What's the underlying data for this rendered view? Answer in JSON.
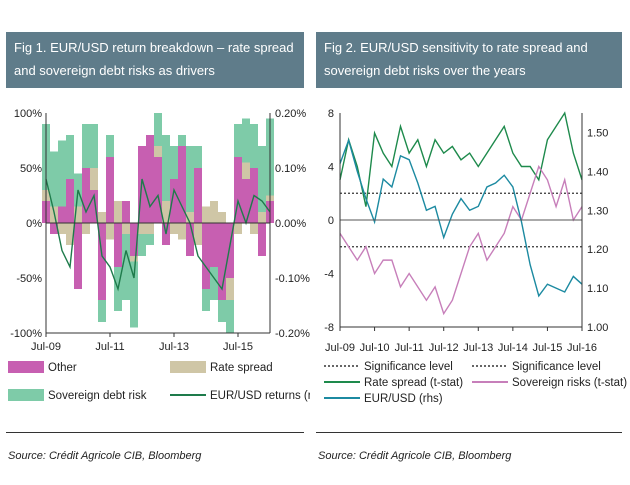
{
  "figures": [
    {
      "title": "Fig 1. EUR/USD return breakdown – rate spread and sovereign debt risks as drivers",
      "source": "Source: Crédit Agricole CIB, Bloomberg"
    },
    {
      "title": "Fig 2. EUR/USD sensitivity to rate spread and sovereign debt risks over the years",
      "source": "Source: Crédit Agricole CIB, Bloomberg"
    }
  ],
  "chart_data": [
    {
      "type": "area",
      "x_ticks": [
        "Jul-09",
        "Jul-11",
        "Jul-13",
        "Jul-15"
      ],
      "y_left_ticks": [
        "100%",
        "50%",
        "0%",
        "-50%",
        "-100%"
      ],
      "y_right_ticks": [
        "0.20%",
        "0.10%",
        "0.00%",
        "-0.10%",
        "-0.20%"
      ],
      "ylim_left": [
        -100,
        100
      ],
      "ylim_right": [
        -0.2,
        0.2
      ],
      "x_dates": [
        "2009-07",
        "2009-10",
        "2010-01",
        "2010-04",
        "2010-07",
        "2010-10",
        "2011-01",
        "2011-04",
        "2011-07",
        "2011-10",
        "2012-01",
        "2012-04",
        "2012-07",
        "2012-10",
        "2013-01",
        "2013-04",
        "2013-07",
        "2013-10",
        "2014-01",
        "2014-04",
        "2014-07",
        "2014-10",
        "2015-01",
        "2015-04",
        "2015-07",
        "2015-10",
        "2016-01",
        "2016-04",
        "2016-07"
      ],
      "series": [
        {
          "name": "Other",
          "color": "#c75fb1",
          "values": [
            20,
            -10,
            15,
            40,
            -60,
            50,
            30,
            -70,
            60,
            -40,
            20,
            -30,
            70,
            80,
            60,
            -20,
            40,
            70,
            -30,
            50,
            -60,
            -40,
            -70,
            -50,
            60,
            40,
            50,
            -30,
            20
          ]
        },
        {
          "name": "Rate spread",
          "color": "#cfc6a6",
          "values": [
            10,
            15,
            -10,
            -20,
            15,
            -10,
            20,
            10,
            -15,
            20,
            -10,
            -5,
            -10,
            -10,
            10,
            20,
            -10,
            -15,
            10,
            -20,
            15,
            20,
            10,
            -20,
            -10,
            15,
            -10,
            10,
            5
          ]
        },
        {
          "name": "Sovereign debt risk",
          "color": "#7ecba8",
          "values": [
            60,
            50,
            60,
            40,
            30,
            40,
            40,
            -20,
            20,
            -40,
            -60,
            -60,
            -20,
            -10,
            30,
            60,
            30,
            10,
            60,
            20,
            -20,
            -30,
            -20,
            -30,
            30,
            40,
            40,
            60,
            70
          ]
        },
        {
          "name": "EUR/USD returns (rhs)",
          "color": "#1e7b4b",
          "values": [
            0.08,
            0.02,
            -0.05,
            -0.08,
            0.06,
            0.02,
            0.05,
            -0.06,
            -0.08,
            -0.12,
            -0.05,
            -0.1,
            0.08,
            0.03,
            0.05,
            -0.02,
            0.06,
            0.03,
            0.0,
            -0.06,
            -0.08,
            -0.1,
            -0.12,
            -0.04,
            0.04,
            0.0,
            0.05,
            0.04,
            0.02
          ]
        }
      ],
      "legend": "bottom"
    },
    {
      "type": "line",
      "x_ticks": [
        "Jul-09",
        "Jul-10",
        "Jul-11",
        "Jul-12",
        "Jul-13",
        "Jul-14",
        "Jul-15",
        "Jul-16"
      ],
      "y_left_ticks": [
        "8",
        "4",
        "0",
        "-4",
        "-8"
      ],
      "y_right_ticks": [
        "1.50",
        "1.40",
        "1.30",
        "1.20",
        "1.10",
        "1.00"
      ],
      "ylim_left": [
        -8,
        8
      ],
      "ylim_right": [
        1.0,
        1.55
      ],
      "significance_levels": [
        2,
        -2
      ],
      "x_dates": [
        "2009-07",
        "2009-10",
        "2010-01",
        "2010-04",
        "2010-07",
        "2010-10",
        "2011-01",
        "2011-04",
        "2011-07",
        "2011-10",
        "2012-01",
        "2012-04",
        "2012-07",
        "2012-10",
        "2013-01",
        "2013-04",
        "2013-07",
        "2013-10",
        "2014-01",
        "2014-04",
        "2014-07",
        "2014-10",
        "2015-01",
        "2015-04",
        "2015-07",
        "2015-10",
        "2016-01",
        "2016-04",
        "2016-07"
      ],
      "series": [
        {
          "name": "Significance level",
          "color": "#333333",
          "values": [
            2,
            2,
            2,
            2,
            2,
            2,
            2,
            2,
            2,
            2,
            2,
            2,
            2,
            2,
            2,
            2,
            2,
            2,
            2,
            2,
            2,
            2,
            2,
            2,
            2,
            2,
            2,
            2,
            2
          ]
        },
        {
          "name": "Significance level",
          "color": "#333333",
          "values": [
            -2,
            -2,
            -2,
            -2,
            -2,
            -2,
            -2,
            -2,
            -2,
            -2,
            -2,
            -2,
            -2,
            -2,
            -2,
            -2,
            -2,
            -2,
            -2,
            -2,
            -2,
            -2,
            -2,
            -2,
            -2,
            -2,
            -2,
            -2,
            -2
          ]
        },
        {
          "name": "Rate spread (t-stat)",
          "color": "#1e8a4c",
          "values": [
            3,
            6,
            4,
            1,
            6.5,
            5,
            4,
            7,
            5,
            6,
            4,
            6,
            5,
            5.5,
            4.5,
            5,
            4,
            5,
            6,
            7,
            5,
            4,
            4,
            3,
            6,
            7,
            8,
            5,
            3
          ]
        },
        {
          "name": "Sovereign risks (t-stat)",
          "color": "#c77fba",
          "values": [
            -1,
            -2,
            -3,
            -2,
            -4,
            -3,
            -3,
            -5,
            -4,
            -5,
            -6,
            -5,
            -7,
            -6,
            -4,
            -2,
            -1,
            -3,
            -2,
            -1,
            1,
            0,
            2,
            4,
            3,
            1,
            3,
            0,
            1
          ]
        },
        {
          "name": "EUR/USD (rhs)",
          "color": "#1c8aa1",
          "values": [
            1.42,
            1.48,
            1.4,
            1.33,
            1.27,
            1.38,
            1.36,
            1.44,
            1.43,
            1.37,
            1.3,
            1.31,
            1.23,
            1.29,
            1.33,
            1.3,
            1.31,
            1.36,
            1.37,
            1.39,
            1.36,
            1.27,
            1.16,
            1.08,
            1.11,
            1.1,
            1.09,
            1.13,
            1.11
          ]
        }
      ],
      "legend": "bottom"
    }
  ]
}
